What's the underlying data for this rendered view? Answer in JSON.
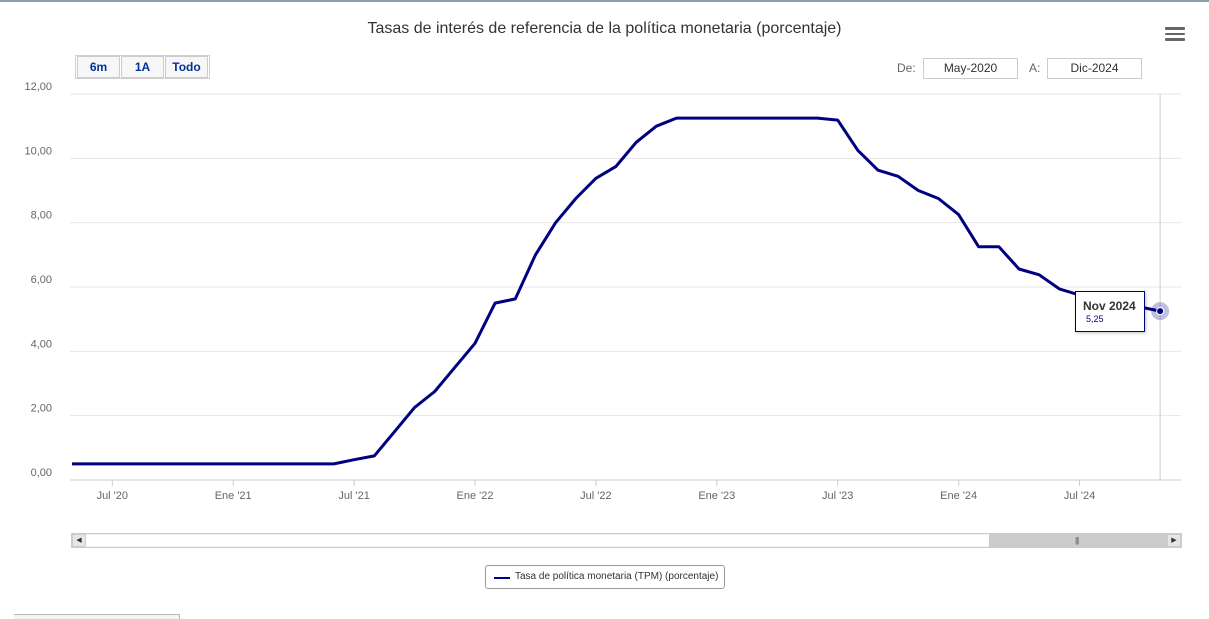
{
  "title": "Tasas de interés de referencia de la política monetaria (porcentaje)",
  "range_selector": {
    "buttons": [
      "6m",
      "1A",
      "Todo"
    ],
    "from_label": "De:",
    "from_value": "May-2020",
    "to_label": "A:",
    "to_value": "Dic-2024"
  },
  "legend": {
    "label": "Tasa de política monetaria (TPM) (porcentaje)"
  },
  "tooltip": {
    "date": "Nov 2024",
    "value": "5,25"
  },
  "colors": {
    "series": "#000080",
    "grid": "#e6e6e6",
    "crosshair": "#cccccc"
  },
  "chart_data": {
    "type": "line",
    "title": "Tasas de interés de referencia de la política monetaria (porcentaje)",
    "xlabel": "",
    "ylabel": "",
    "ylim": [
      0,
      12
    ],
    "yticks": [
      0,
      2,
      4,
      6,
      8,
      10,
      12
    ],
    "ytick_labels": [
      "0,00",
      "2,00",
      "4,00",
      "6,00",
      "8,00",
      "10,00",
      "12,00"
    ],
    "xtick_labels": [
      "Jul '20",
      "Ene '21",
      "Jul '21",
      "Ene '22",
      "Jul '22",
      "Ene '23",
      "Jul '23",
      "Ene '24",
      "Jul '24"
    ],
    "xtick_months": [
      "2020-07",
      "2021-01",
      "2021-07",
      "2022-01",
      "2022-07",
      "2023-01",
      "2023-07",
      "2024-01",
      "2024-07"
    ],
    "grid": true,
    "legend_position": "bottom-center",
    "series": [
      {
        "name": "Tasa de política monetaria (TPM) (porcentaje)",
        "x": [
          "2020-05",
          "2020-06",
          "2020-07",
          "2020-08",
          "2020-09",
          "2020-10",
          "2020-11",
          "2020-12",
          "2021-01",
          "2021-02",
          "2021-03",
          "2021-04",
          "2021-05",
          "2021-06",
          "2021-07",
          "2021-08",
          "2021-09",
          "2021-10",
          "2021-11",
          "2021-12",
          "2022-01",
          "2022-02",
          "2022-03",
          "2022-04",
          "2022-05",
          "2022-06",
          "2022-07",
          "2022-08",
          "2022-09",
          "2022-10",
          "2022-11",
          "2022-12",
          "2023-01",
          "2023-02",
          "2023-03",
          "2023-04",
          "2023-05",
          "2023-06",
          "2023-07",
          "2023-08",
          "2023-09",
          "2023-10",
          "2023-11",
          "2023-12",
          "2024-01",
          "2024-02",
          "2024-03",
          "2024-04",
          "2024-05",
          "2024-06",
          "2024-07",
          "2024-08",
          "2024-09",
          "2024-10",
          "2024-11"
        ],
        "values": [
          0.5,
          0.5,
          0.5,
          0.5,
          0.5,
          0.5,
          0.5,
          0.5,
          0.5,
          0.5,
          0.5,
          0.5,
          0.5,
          0.5,
          0.63,
          0.75,
          1.5,
          2.25,
          2.75,
          3.5,
          4.25,
          5.5,
          5.63,
          7.0,
          8.0,
          8.75,
          9.38,
          9.75,
          10.5,
          11.0,
          11.25,
          11.25,
          11.25,
          11.25,
          11.25,
          11.25,
          11.25,
          11.25,
          11.19,
          10.25,
          9.63,
          9.44,
          9.0,
          8.75,
          8.25,
          7.25,
          7.25,
          6.56,
          6.38,
          5.94,
          5.75,
          5.63,
          5.5,
          5.38,
          5.25
        ]
      }
    ]
  }
}
